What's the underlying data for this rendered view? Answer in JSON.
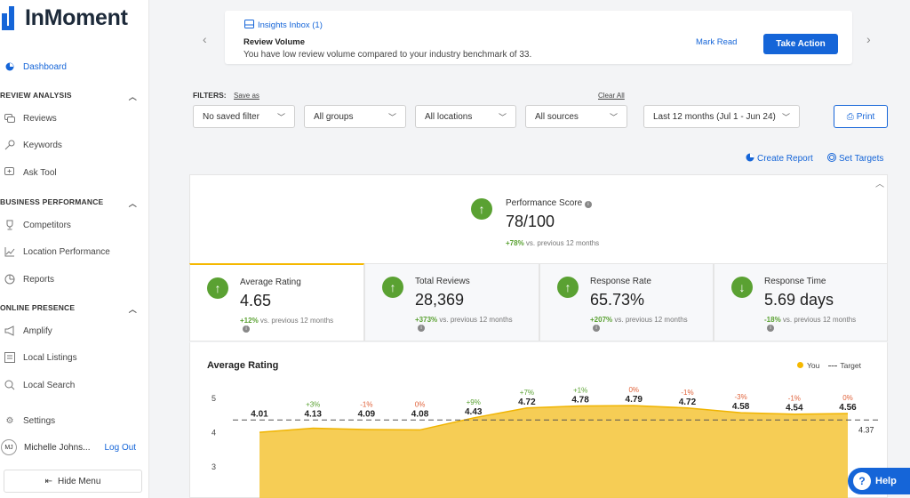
{
  "app": {
    "brand": "InMoment"
  },
  "sidebar": {
    "dashboard": "Dashboard",
    "sections": [
      {
        "title": "REVIEW ANALYSIS",
        "items": [
          "Reviews",
          "Keywords",
          "Ask Tool"
        ]
      },
      {
        "title": "BUSINESS PERFORMANCE",
        "items": [
          "Competitors",
          "Location Performance",
          "Reports"
        ]
      },
      {
        "title": "ONLINE PRESENCE",
        "items": [
          "Amplify",
          "Local Listings",
          "Local Search"
        ]
      }
    ],
    "settings": "Settings",
    "user": {
      "initials": "MJ",
      "name": "Michelle Johns...",
      "logout": "Log Out"
    },
    "hide_menu": "Hide Menu"
  },
  "insights": {
    "title": "Insights Inbox (1)",
    "heading": "Review Volume",
    "text": "You have low review volume compared to your industry benchmark of 33.",
    "mark_read": "Mark Read",
    "take_action": "Take Action"
  },
  "filters": {
    "label": "FILTERS:",
    "save_as": "Save as",
    "clear_all": "Clear All",
    "saved_filter": "No saved filter",
    "groups": "All groups",
    "locations": "All locations",
    "sources": "All sources",
    "period": "Last 12 months (Jul 1 - Jun 24)",
    "print": "Print"
  },
  "actions": {
    "create_report": "Create Report",
    "set_targets": "Set Targets"
  },
  "performance": {
    "label": "Performance Score",
    "value": "78/100",
    "change": "+78%",
    "compare": "vs. previous 12 months"
  },
  "kpis": [
    {
      "label": "Average Rating",
      "value": "4.65",
      "change": "+12%",
      "direction": "up",
      "compare": "vs. previous 12 months"
    },
    {
      "label": "Total Reviews",
      "value": "28,369",
      "change": "+373%",
      "direction": "up",
      "compare": "vs. previous 12 months"
    },
    {
      "label": "Response Rate",
      "value": "65.73%",
      "direction": "up",
      "change": "+207%",
      "compare": "vs. previous 12 months"
    },
    {
      "label": "Response Time",
      "value": "5.69 days",
      "change": "-18%",
      "direction": "down",
      "compare": "vs. previous 12 months"
    }
  ],
  "chart_data": {
    "type": "area",
    "title": "Average Rating",
    "legend": [
      "You",
      "Target"
    ],
    "ylim": [
      3,
      5
    ],
    "yticks": [
      "5",
      "4",
      "3"
    ],
    "series": [
      {
        "name": "You",
        "values": [
          4.01,
          4.13,
          4.09,
          4.08,
          4.43,
          4.72,
          4.78,
          4.79,
          4.72,
          4.58,
          4.54,
          4.56
        ]
      }
    ],
    "changes": [
      "",
      "+3%",
      "-1%",
      "0%",
      "+9%",
      "+7%",
      "+1%",
      "0%",
      "-1%",
      "-3%",
      "-1%",
      "0%"
    ],
    "value_labels": [
      "4.01",
      "4.13",
      "4.09",
      "4.08",
      "4.43",
      "4.72",
      "4.78",
      "4.79",
      "4.72",
      "4.58",
      "4.54",
      "4.56"
    ],
    "target": 4.37,
    "target_label": "4.37",
    "colors": {
      "area": "#f5c842",
      "line": "#f0b400"
    }
  },
  "help": {
    "label": "Help"
  }
}
